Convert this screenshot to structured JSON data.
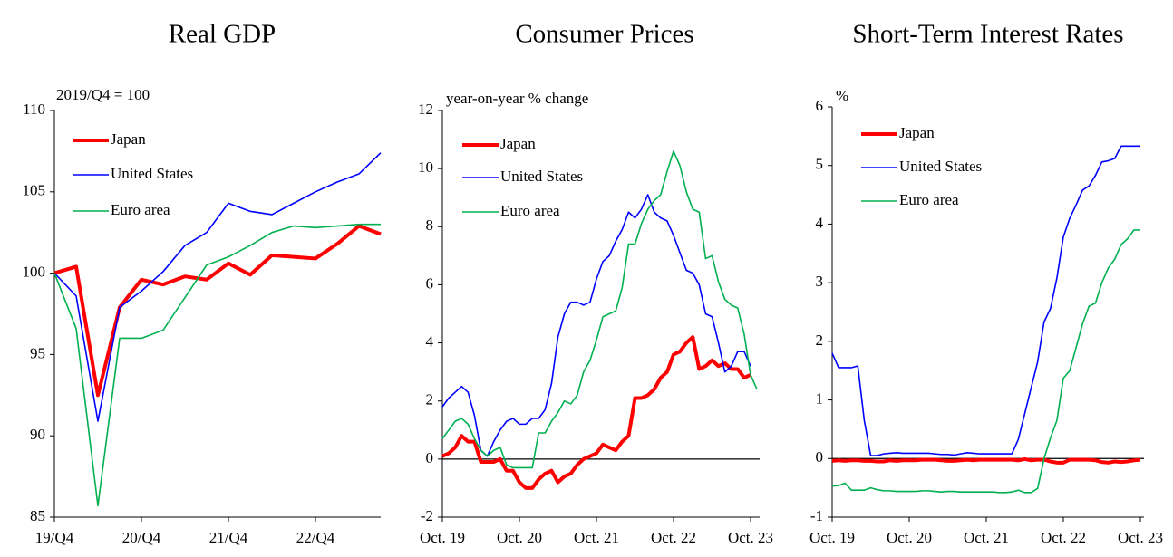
{
  "chart_data": [
    {
      "type": "line",
      "title": "Real GDP",
      "y_label": "2019/Q4 = 100",
      "categories": [
        "19/Q4",
        null,
        null,
        null,
        "20/Q4",
        null,
        null,
        null,
        "21/Q4",
        null,
        null,
        null,
        "22/Q4",
        null,
        null,
        null
      ],
      "series": [
        {
          "name": "Japan",
          "color": "#ff0000",
          "values": [
            100,
            100.4,
            92.5,
            97.9,
            99.6,
            99.3,
            99.8,
            99.6,
            100.6,
            99.9,
            101.1,
            101.0,
            100.9,
            101.8,
            102.9,
            102.4
          ]
        },
        {
          "name": "United States",
          "color": "#0000ff",
          "values": [
            100,
            98.6,
            90.9,
            97.9,
            98.9,
            100.1,
            101.7,
            102.5,
            104.3,
            103.8,
            103.6,
            104.3,
            105.0,
            105.6,
            106.1,
            107.4
          ]
        },
        {
          "name": "Euro area",
          "color": "#00b050",
          "values": [
            100,
            96.6,
            85.7,
            96.0,
            96.0,
            96.5,
            98.5,
            100.5,
            101.0,
            101.7,
            102.5,
            102.9,
            102.8,
            102.9,
            103.0,
            103.0
          ]
        }
      ],
      "ylim": [
        85,
        110
      ],
      "yticks": [
        85,
        90,
        95,
        100,
        105,
        110
      ],
      "zero_line": false
    },
    {
      "type": "line",
      "title": "Consumer Prices",
      "y_label": "year-on-year % change",
      "categories": [
        "Oct. 19",
        null,
        null,
        null,
        null,
        null,
        null,
        null,
        null,
        null,
        null,
        null,
        "Oct. 20",
        null,
        null,
        null,
        null,
        null,
        null,
        null,
        null,
        null,
        null,
        null,
        "Oct. 21",
        null,
        null,
        null,
        null,
        null,
        null,
        null,
        null,
        null,
        null,
        null,
        "Oct. 22",
        null,
        null,
        null,
        null,
        null,
        null,
        null,
        null,
        null,
        null,
        null,
        "Oct. 23",
        null
      ],
      "series": [
        {
          "name": "Japan",
          "color": "#ff0000",
          "values": [
            0.1,
            0.2,
            0.4,
            0.8,
            0.6,
            0.6,
            -0.1,
            -0.1,
            -0.1,
            0.0,
            -0.4,
            -0.4,
            -0.8,
            -1.0,
            -1.0,
            -0.7,
            -0.5,
            -0.4,
            -0.8,
            -0.6,
            -0.5,
            -0.2,
            0.0,
            0.1,
            0.2,
            0.5,
            0.4,
            0.3,
            0.6,
            0.8,
            2.1,
            2.1,
            2.2,
            2.4,
            2.8,
            3.0,
            3.6,
            3.7,
            4.0,
            4.2,
            3.1,
            3.2,
            3.4,
            3.2,
            3.3,
            3.1,
            3.1,
            2.8,
            2.9,
            null
          ]
        },
        {
          "name": "United States",
          "color": "#0000ff",
          "values": [
            1.8,
            2.1,
            2.3,
            2.5,
            2.3,
            1.5,
            0.3,
            0.1,
            0.6,
            1.0,
            1.3,
            1.4,
            1.2,
            1.2,
            1.4,
            1.4,
            1.7,
            2.6,
            4.2,
            5.0,
            5.4,
            5.4,
            5.3,
            5.4,
            6.2,
            6.8,
            7.0,
            7.5,
            7.9,
            8.5,
            8.3,
            8.6,
            9.1,
            8.5,
            8.3,
            8.2,
            7.7,
            7.1,
            6.5,
            6.4,
            6.0,
            5.0,
            4.9,
            4.0,
            3.0,
            3.2,
            3.7,
            3.7,
            3.2,
            null
          ]
        },
        {
          "name": "Euro area",
          "color": "#00b050",
          "values": [
            0.7,
            1.0,
            1.3,
            1.4,
            1.2,
            0.7,
            0.3,
            0.1,
            0.3,
            0.4,
            -0.2,
            -0.3,
            -0.3,
            -0.3,
            -0.3,
            0.9,
            0.9,
            1.3,
            1.6,
            2.0,
            1.9,
            2.2,
            3.0,
            3.4,
            4.1,
            4.9,
            5.0,
            5.1,
            5.9,
            7.4,
            7.4,
            8.1,
            8.6,
            8.9,
            9.1,
            9.9,
            10.6,
            10.1,
            9.2,
            8.6,
            8.5,
            6.9,
            7.0,
            6.1,
            5.5,
            5.3,
            5.2,
            4.3,
            2.9,
            2.4
          ]
        }
      ],
      "ylim": [
        -2,
        12
      ],
      "yticks": [
        -2,
        0,
        2,
        4,
        6,
        8,
        10,
        12
      ],
      "zero_line": true
    },
    {
      "type": "line",
      "title": "Short-Term Interest Rates",
      "y_label": "%",
      "categories": [
        "Oct. 19",
        null,
        null,
        null,
        null,
        null,
        null,
        null,
        null,
        null,
        null,
        null,
        "Oct. 20",
        null,
        null,
        null,
        null,
        null,
        null,
        null,
        null,
        null,
        null,
        null,
        "Oct. 21",
        null,
        null,
        null,
        null,
        null,
        null,
        null,
        null,
        null,
        null,
        null,
        "Oct. 22",
        null,
        null,
        null,
        null,
        null,
        null,
        null,
        null,
        null,
        null,
        null,
        "Oct. 23"
      ],
      "series": [
        {
          "name": "Japan",
          "color": "#ff0000",
          "values": [
            -0.04,
            -0.03,
            -0.04,
            -0.03,
            -0.03,
            -0.04,
            -0.04,
            -0.05,
            -0.05,
            -0.03,
            -0.04,
            -0.03,
            -0.03,
            -0.03,
            -0.02,
            -0.02,
            -0.02,
            -0.03,
            -0.04,
            -0.04,
            -0.03,
            -0.02,
            -0.03,
            -0.02,
            -0.02,
            -0.02,
            -0.02,
            -0.02,
            -0.02,
            -0.03,
            -0.01,
            -0.03,
            -0.02,
            -0.02,
            -0.05,
            -0.07,
            -0.07,
            -0.02,
            -0.02,
            -0.02,
            -0.02,
            -0.03,
            -0.06,
            -0.07,
            -0.05,
            -0.06,
            -0.05,
            -0.03,
            -0.02
          ]
        },
        {
          "name": "United States",
          "color": "#0000ff",
          "values": [
            1.8,
            1.55,
            1.55,
            1.55,
            1.58,
            0.65,
            0.05,
            0.05,
            0.08,
            0.09,
            0.1,
            0.09,
            0.09,
            0.09,
            0.09,
            0.09,
            0.08,
            0.07,
            0.07,
            0.06,
            0.08,
            0.1,
            0.09,
            0.08,
            0.08,
            0.08,
            0.08,
            0.08,
            0.08,
            0.33,
            0.77,
            1.21,
            1.65,
            2.33,
            2.56,
            3.08,
            3.78,
            4.1,
            4.33,
            4.58,
            4.65,
            4.83,
            5.06,
            5.08,
            5.12,
            5.33,
            5.33,
            5.33,
            5.33
          ]
        },
        {
          "name": "Euro area",
          "color": "#00b050",
          "values": [
            -0.47,
            -0.46,
            -0.42,
            -0.54,
            -0.54,
            -0.54,
            -0.5,
            -0.53,
            -0.55,
            -0.55,
            -0.56,
            -0.56,
            -0.56,
            -0.56,
            -0.55,
            -0.55,
            -0.56,
            -0.57,
            -0.56,
            -0.56,
            -0.57,
            -0.57,
            -0.57,
            -0.57,
            -0.57,
            -0.57,
            -0.58,
            -0.58,
            -0.57,
            -0.54,
            -0.58,
            -0.58,
            -0.51,
            0.0,
            0.35,
            0.65,
            1.37,
            1.5,
            1.9,
            2.3,
            2.6,
            2.65,
            3.0,
            3.25,
            3.4,
            3.65,
            3.75,
            3.9,
            3.9
          ]
        }
      ],
      "ylim": [
        -1,
        6
      ],
      "yticks": [
        -1,
        0,
        1,
        2,
        3,
        4,
        5,
        6
      ],
      "zero_line": true
    }
  ]
}
